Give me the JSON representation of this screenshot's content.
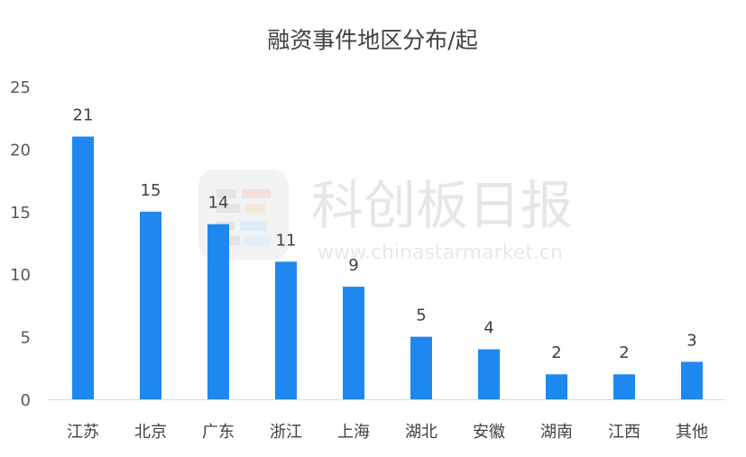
{
  "chart_data": {
    "type": "bar",
    "title": "融资事件地区分布/起",
    "categories": [
      "江苏",
      "北京",
      "广东",
      "浙江",
      "上海",
      "湖北",
      "安徽",
      "湖南",
      "江西",
      "其他"
    ],
    "values": [
      21,
      15,
      14,
      11,
      9,
      5,
      4,
      2,
      2,
      3
    ],
    "yticks": [
      "0",
      "5",
      "10",
      "15",
      "20",
      "25"
    ],
    "ylim": [
      0,
      25
    ],
    "grid": false,
    "legend": "none",
    "bar_color": "#1e88f0",
    "axis_color": "#d9d9d9"
  },
  "watermark": {
    "text": "科创板日报",
    "url": "www.chinastarmarket.cn",
    "color": "#e6e6e6"
  }
}
